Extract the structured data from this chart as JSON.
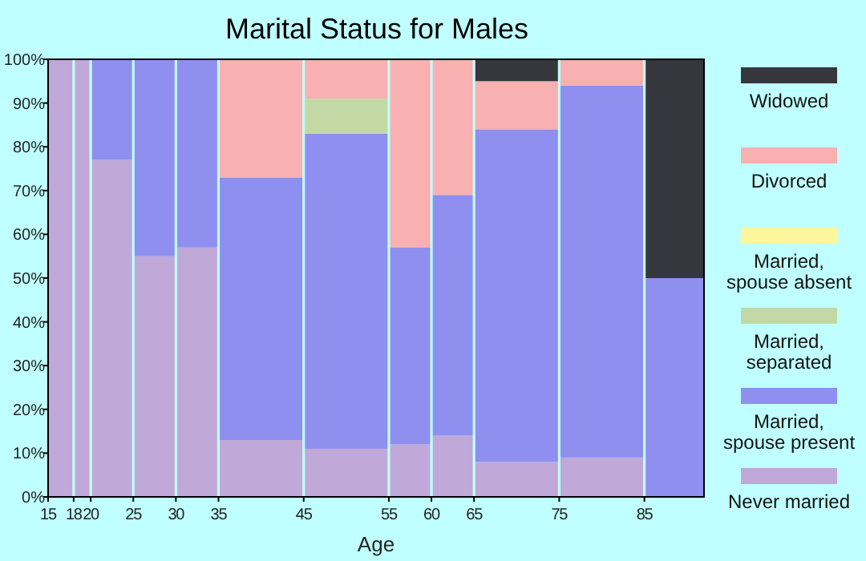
{
  "chart_data": {
    "type": "bar",
    "stacked": true,
    "title": "Marital Status for Males",
    "xlabel": "Age",
    "x": [
      16.5,
      19,
      22.5,
      27.5,
      32.5,
      40,
      50,
      57.5,
      62.5,
      70,
      80,
      88.5
    ],
    "xlim": [
      15,
      92
    ],
    "xticks": [
      15,
      18,
      20,
      25,
      30,
      35,
      45,
      55,
      60,
      65,
      75,
      85
    ],
    "ylim": [
      0,
      100
    ],
    "yticks": [
      {
        "value": 0,
        "label": "0%"
      },
      {
        "value": 10,
        "label": "10%"
      },
      {
        "value": 20,
        "label": "20%"
      },
      {
        "value": 30,
        "label": "30%"
      },
      {
        "value": 40,
        "label": "40%"
      },
      {
        "value": 50,
        "label": "50%"
      },
      {
        "value": 60,
        "label": "60%"
      },
      {
        "value": 70,
        "label": "70%"
      },
      {
        "value": 80,
        "label": "80%"
      },
      {
        "value": 90,
        "label": "90%"
      },
      {
        "value": 100,
        "label": "100%"
      }
    ],
    "legend": "right",
    "grid": false,
    "series": [
      {
        "name": "Never married",
        "color": "#c0a8d8",
        "values": [
          100,
          100,
          77,
          55,
          57,
          13,
          11,
          12,
          14,
          8,
          9,
          0
        ]
      },
      {
        "name": "Married, spouse present",
        "color": "#8f8ff0",
        "values": [
          0,
          0,
          23,
          45,
          43,
          60,
          72,
          45,
          55,
          76,
          85,
          50
        ]
      },
      {
        "name": "Married, separated",
        "color": "#c2d9a5",
        "values": [
          0,
          0,
          0,
          0,
          0,
          0,
          8,
          0,
          0,
          0,
          0,
          0
        ]
      },
      {
        "name": "Married, spouse absent",
        "color": "#fff59a",
        "values": [
          0,
          0,
          0,
          0,
          0,
          0,
          0,
          0,
          0,
          0,
          0,
          0
        ]
      },
      {
        "name": "Divorced",
        "color": "#f8b0b0",
        "values": [
          0,
          0,
          0,
          0,
          0,
          27,
          9,
          43,
          31,
          11,
          6,
          0
        ]
      },
      {
        "name": "Widowed",
        "color": "#36373d",
        "values": [
          0,
          0,
          0,
          0,
          0,
          0,
          0,
          0,
          0,
          5,
          0,
          50
        ]
      }
    ]
  }
}
